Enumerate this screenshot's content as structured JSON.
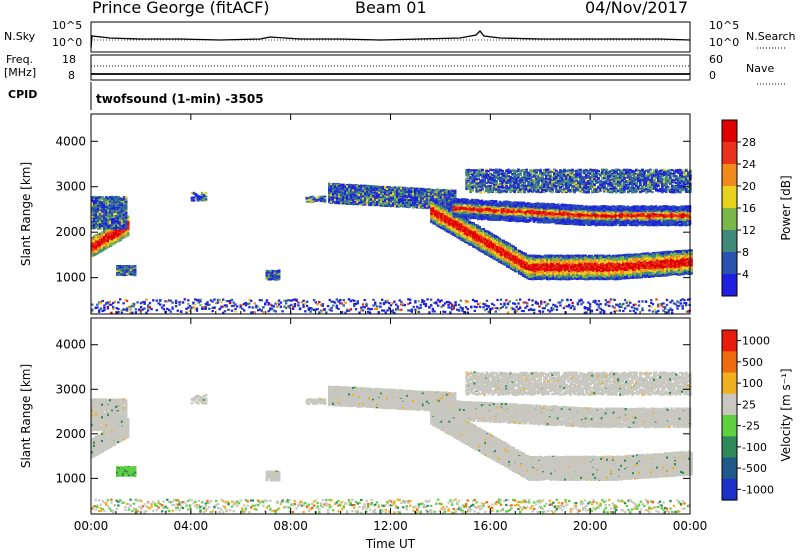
{
  "header": {
    "station": "Prince George (fitACF)",
    "beam": "Beam 01",
    "date": "04/Nov/2017"
  },
  "noise_panel": {
    "left_label": "N.Sky",
    "left_ticks": [
      "10^5",
      "10^0"
    ],
    "right_ticks": [
      "10^5",
      "10^0"
    ],
    "right_label": "N.Search"
  },
  "freq_panel": {
    "left_label_1": "Freq.",
    "left_label_2": "[MHz]",
    "left_ticks": [
      "18",
      "8"
    ],
    "right_ticks": [
      "60",
      "0"
    ],
    "right_label": "Nave"
  },
  "cpid_panel": {
    "label": "CPID",
    "text": "twofsound (1-min) -3505"
  },
  "chart_data": [
    {
      "type": "heatmap",
      "panel": "power",
      "xlabel": "Time UT",
      "ylabel": "Slant Range [km]",
      "x_ticks": [
        "00:00",
        "04:00",
        "08:00",
        "12:00",
        "16:00",
        "20:00",
        "00:00"
      ],
      "y_ticks": [
        "1000",
        "2000",
        "3000",
        "4000"
      ],
      "ylim": [
        200,
        4600
      ],
      "colorbar_label": "Power [dB]",
      "colorbar_ticks": [
        "28",
        "24",
        "20",
        "16",
        "12",
        "8",
        "4"
      ],
      "colors": [
        "#2020e0",
        "#2a52b0",
        "#3f8a7a",
        "#7ab84a",
        "#e8d21e",
        "#f08a1c",
        "#e8321c",
        "#e00000"
      ]
    },
    {
      "type": "heatmap",
      "panel": "velocity",
      "xlabel": "Time UT",
      "ylabel": "Slant Range [km]",
      "x_ticks": [
        "00:00",
        "04:00",
        "08:00",
        "12:00",
        "16:00",
        "20:00",
        "00:00"
      ],
      "y_ticks": [
        "1000",
        "2000",
        "3000",
        "4000"
      ],
      "ylim": [
        200,
        4600
      ],
      "colorbar_label": "Velocity [m s⁻¹]",
      "colorbar_ticks": [
        "1000",
        "500",
        "100",
        "25",
        "-25",
        "-100",
        "-500",
        "-1000"
      ],
      "colors": [
        "#1c2fc8",
        "#1f5a8a",
        "#2f8a5a",
        "#5fd040",
        "#c8c8c0",
        "#f0b020",
        "#f06a10",
        "#e81c0c"
      ]
    }
  ]
}
